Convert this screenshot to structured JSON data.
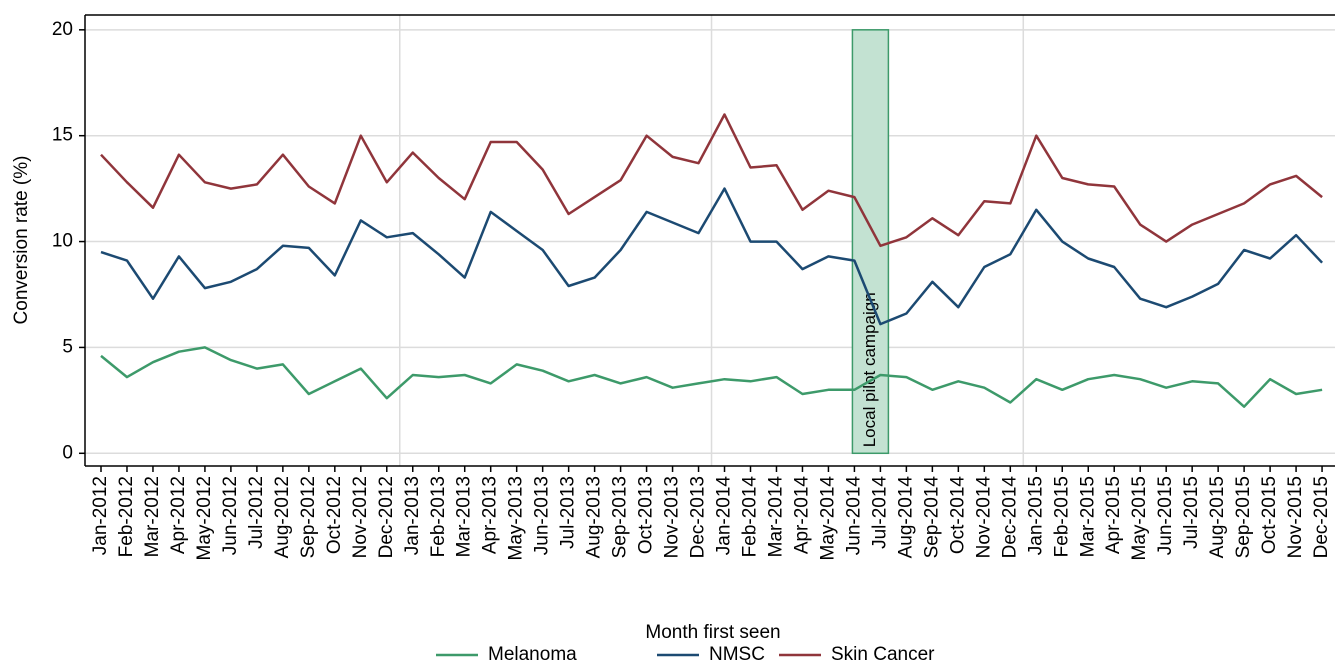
{
  "chart_data": {
    "type": "line",
    "x_label": "Month first seen",
    "y_label": "Conversion rate (%)",
    "categories": [
      "Jan-2012",
      "Feb-2012",
      "Mar-2012",
      "Apr-2012",
      "May-2012",
      "Jun-2012",
      "Jul-2012",
      "Aug-2012",
      "Sep-2012",
      "Oct-2012",
      "Nov-2012",
      "Dec-2012",
      "Jan-2013",
      "Feb-2013",
      "Mar-2013",
      "Apr-2013",
      "May-2013",
      "Jun-2013",
      "Jul-2013",
      "Aug-2013",
      "Sep-2013",
      "Oct-2013",
      "Nov-2013",
      "Dec-2013",
      "Jan-2014",
      "Feb-2014",
      "Mar-2014",
      "Apr-2014",
      "May-2014",
      "Jun-2014",
      "Jul-2014",
      "Aug-2014",
      "Sep-2014",
      "Oct-2014",
      "Nov-2014",
      "Dec-2014",
      "Jan-2015",
      "Feb-2015",
      "Mar-2015",
      "Apr-2015",
      "May-2015",
      "Jun-2015",
      "Jul-2015",
      "Aug-2015",
      "Sep-2015",
      "Oct-2015",
      "Nov-2015",
      "Dec-2015"
    ],
    "series": [
      {
        "name": "Melanoma",
        "color": "#3d9a6a",
        "values": [
          4.6,
          3.6,
          4.3,
          4.8,
          5.0,
          4.4,
          4.0,
          4.2,
          2.8,
          3.4,
          4.0,
          2.6,
          3.7,
          3.6,
          3.7,
          3.3,
          4.2,
          3.9,
          3.4,
          3.7,
          3.3,
          3.6,
          3.1,
          3.3,
          3.5,
          3.4,
          3.6,
          2.8,
          3.0,
          3.0,
          3.7,
          3.6,
          3.0,
          3.4,
          3.1,
          2.4,
          3.5,
          3.0,
          3.5,
          3.7,
          3.5,
          3.1,
          3.4,
          3.3,
          2.2,
          3.5,
          2.8,
          3.0
        ]
      },
      {
        "name": "NMSC",
        "color": "#1c4a72",
        "values": [
          9.5,
          9.1,
          7.3,
          9.3,
          7.8,
          8.1,
          8.7,
          9.8,
          9.7,
          8.4,
          11.0,
          10.2,
          10.4,
          9.4,
          8.3,
          11.4,
          10.5,
          9.6,
          7.9,
          8.3,
          9.6,
          11.4,
          10.9,
          10.4,
          12.5,
          10.0,
          10.0,
          8.7,
          9.3,
          9.1,
          6.1,
          6.6,
          8.1,
          6.9,
          8.8,
          9.4,
          11.5,
          10.0,
          9.2,
          8.8,
          7.3,
          6.9,
          7.4,
          8.0,
          9.6,
          9.2,
          10.3,
          9.0
        ]
      },
      {
        "name": "Skin Cancer",
        "color": "#90353b",
        "values": [
          14.1,
          12.8,
          11.6,
          14.1,
          12.8,
          12.5,
          12.7,
          14.1,
          12.6,
          11.8,
          15.0,
          12.8,
          14.2,
          13.0,
          12.0,
          14.7,
          14.7,
          13.4,
          11.3,
          12.1,
          12.9,
          15.0,
          14.0,
          13.7,
          16.0,
          13.5,
          13.6,
          11.5,
          12.4,
          12.1,
          9.8,
          10.2,
          11.1,
          10.3,
          11.9,
          11.8,
          15.0,
          13.0,
          12.7,
          12.6,
          10.8,
          10.0,
          10.8,
          11.3,
          11.8,
          12.7,
          13.1,
          12.1
        ]
      }
    ],
    "annotation": {
      "text": "Local pilot campaign",
      "x_start": "Jun-2014",
      "x_end": "Jul-2014",
      "y_range": [
        0,
        20
      ],
      "color": "#c3e2d2",
      "edge_color": "#3d9a6a"
    },
    "ylim": [
      -0.6,
      20.7
    ],
    "yticks": [
      0,
      5,
      10,
      15,
      20
    ],
    "grid": true,
    "legend": "bottom"
  }
}
